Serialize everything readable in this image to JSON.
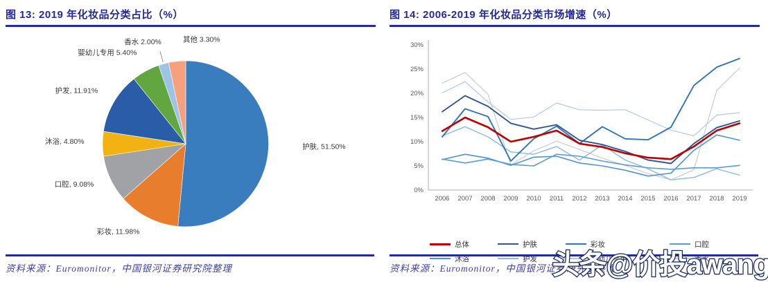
{
  "figures": {
    "left": {
      "title": "图 13: 2019 年化妆品分类占比（%）",
      "source": "资料来源：Euromonitor，中国银河证券研究院整理"
    },
    "right": {
      "title": "图 14: 2006-2019 年化妆品分类市场增速（%）",
      "source": "资料来源：Euromonitor，中国银河证券研究院整理"
    }
  },
  "watermark": {
    "text": "头条@价投awang",
    "fill": "#FFFFFF",
    "outline": "#1B2B5F"
  },
  "accent_color": "#232A9E",
  "chart_data": [
    {
      "type": "pie",
      "title": "2019 年化妆品分类占比（%）",
      "slices": [
        {
          "label": "护肤",
          "value": 51.5,
          "display": "护肤, 51.50%",
          "color": "#3A7DBF"
        },
        {
          "label": "彩妆",
          "value": 11.98,
          "display": "彩妆, 11.98%",
          "color": "#E87D2E"
        },
        {
          "label": "口腔",
          "value": 9.08,
          "display": "口腔, 9.08%",
          "color": "#A0A2A5"
        },
        {
          "label": "沐浴",
          "value": 4.8,
          "display": "沐浴, 4.80%",
          "color": "#F2B211"
        },
        {
          "label": "护发",
          "value": 11.91,
          "display": "护发, 11.91%",
          "color": "#2A5DA8"
        },
        {
          "label": "婴幼儿专用",
          "value": 5.4,
          "display": "婴幼儿专用 5.40%",
          "color": "#62A63F"
        },
        {
          "label": "香水",
          "value": 2.0,
          "display": "香水 2.00%",
          "color": "#9DC3E6"
        },
        {
          "label": "其他",
          "value": 3.3,
          "display": "其他 3.30%",
          "color": "#F5A17E"
        }
      ]
    },
    {
      "type": "line",
      "title": "2006-2019 年化妆品分类市场增速（%）",
      "x": [
        2006,
        2007,
        2008,
        2009,
        2010,
        2011,
        2012,
        2013,
        2014,
        2015,
        2016,
        2017,
        2018,
        2019
      ],
      "ylim": [
        0,
        30
      ],
      "ytick_step": 5,
      "ytick_labels": [
        "0%",
        "5%",
        "10%",
        "15%",
        "20%",
        "25%",
        "30%"
      ],
      "grid": false,
      "legend_position": "bottom",
      "series": [
        {
          "name": "总体",
          "color": "#C00000",
          "width": 2.6,
          "values": [
            12.2,
            15.0,
            13.0,
            10.0,
            11.0,
            12.3,
            9.6,
            8.9,
            7.6,
            6.7,
            6.4,
            9.0,
            12.3,
            13.8
          ]
        },
        {
          "name": "护肤",
          "color": "#2F5597",
          "width": 1.9,
          "values": [
            16.2,
            19.5,
            17.3,
            13.8,
            12.6,
            13.5,
            10.3,
            9.4,
            8.0,
            6.2,
            5.5,
            9.6,
            12.9,
            14.3
          ]
        },
        {
          "name": "彩妆",
          "color": "#2E75B6",
          "width": 1.9,
          "values": [
            11.0,
            16.8,
            15.2,
            6.0,
            10.6,
            13.2,
            9.6,
            13.1,
            10.6,
            10.4,
            13.0,
            21.6,
            25.4,
            27.2
          ]
        },
        {
          "name": "口腔",
          "color": "#5B9BD5",
          "width": 1.6,
          "values": [
            6.4,
            5.6,
            6.4,
            5.3,
            5.0,
            7.4,
            7.0,
            6.0,
            5.2,
            4.6,
            4.3,
            4.6,
            4.6,
            5.1
          ]
        },
        {
          "name": "沐浴",
          "color": "#4D93D9",
          "width": 1.6,
          "values": [
            6.3,
            7.4,
            6.6,
            5.1,
            6.8,
            7.0,
            5.6,
            5.0,
            4.1,
            2.9,
            3.5,
            8.2,
            11.4,
            10.3
          ]
        },
        {
          "name": "护发",
          "color": "#8FBCE6",
          "width": 1.5,
          "values": [
            11.2,
            13.1,
            11.0,
            7.9,
            7.4,
            9.0,
            6.2,
            9.3,
            6.2,
            4.4,
            2.1,
            2.6,
            4.4,
            3.1
          ]
        },
        {
          "name": "婴幼儿专用",
          "color": "#B4C7E7",
          "width": 1.2,
          "values": [
            20.1,
            22.4,
            18.2,
            14.6,
            15.1,
            18.0,
            16.6,
            16.5,
            16.6,
            14.5,
            12.4,
            11.2,
            15.5,
            16.0
          ]
        },
        {
          "name": "香水",
          "color": "#C8CCD4",
          "width": 1.2,
          "values": [
            22.1,
            24.3,
            19.8,
            5.2,
            8.1,
            10.1,
            8.4,
            6.6,
            5.1,
            3.4,
            2.1,
            4.2,
            20.6,
            25.2
          ]
        }
      ]
    }
  ]
}
